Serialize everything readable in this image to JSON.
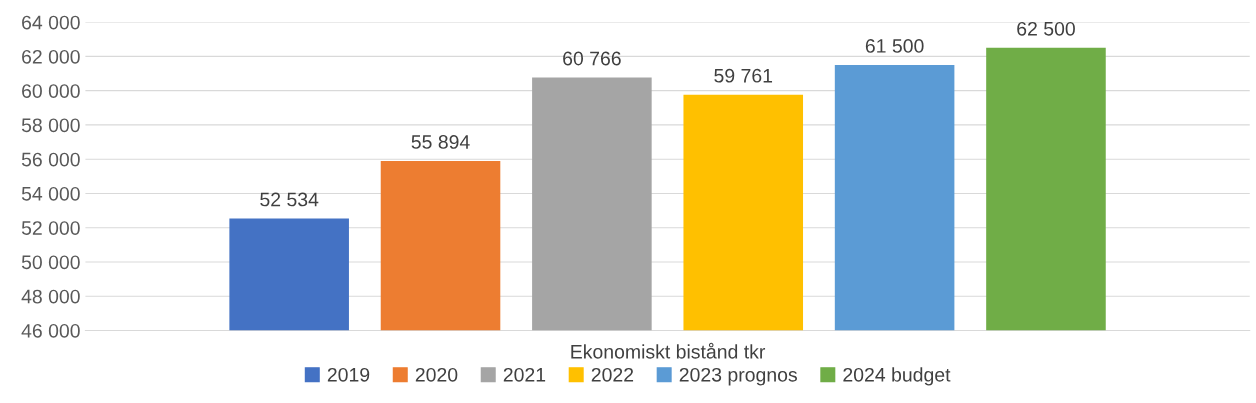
{
  "chart_data": {
    "type": "bar",
    "categories": [
      "Ekonomiskt bistånd tkr"
    ],
    "series": [
      {
        "name": "2019",
        "color": "#4472c4",
        "values": [
          52534
        ],
        "value_labels": [
          "52 534"
        ]
      },
      {
        "name": "2020",
        "color": "#ed7d31",
        "values": [
          55894
        ],
        "value_labels": [
          "55 894"
        ]
      },
      {
        "name": "2021",
        "color": "#a5a5a5",
        "values": [
          60766
        ],
        "value_labels": [
          "60 766"
        ]
      },
      {
        "name": "2022",
        "color": "#ffc000",
        "values": [
          59761
        ],
        "value_labels": [
          "59 761"
        ]
      },
      {
        "name": "2023 prognos",
        "color": "#5b9bd5",
        "values": [
          61500
        ],
        "value_labels": [
          "61 500"
        ]
      },
      {
        "name": "2024 budget",
        "color": "#70ad47",
        "values": [
          62500
        ],
        "value_labels": [
          "62 500"
        ]
      }
    ],
    "ylim": [
      46000,
      64000
    ],
    "yticks": [
      {
        "value": 46000,
        "label": "46 000"
      },
      {
        "value": 48000,
        "label": "48 000"
      },
      {
        "value": 50000,
        "label": "50 000"
      },
      {
        "value": 52000,
        "label": "52 000"
      },
      {
        "value": 54000,
        "label": "54 000"
      },
      {
        "value": 56000,
        "label": "56 000"
      },
      {
        "value": 58000,
        "label": "58 000"
      },
      {
        "value": 60000,
        "label": "60 000"
      },
      {
        "value": 62000,
        "label": "62 000"
      },
      {
        "value": 64000,
        "label": "64 000"
      }
    ],
    "grid": "y",
    "legend": "bottom"
  }
}
